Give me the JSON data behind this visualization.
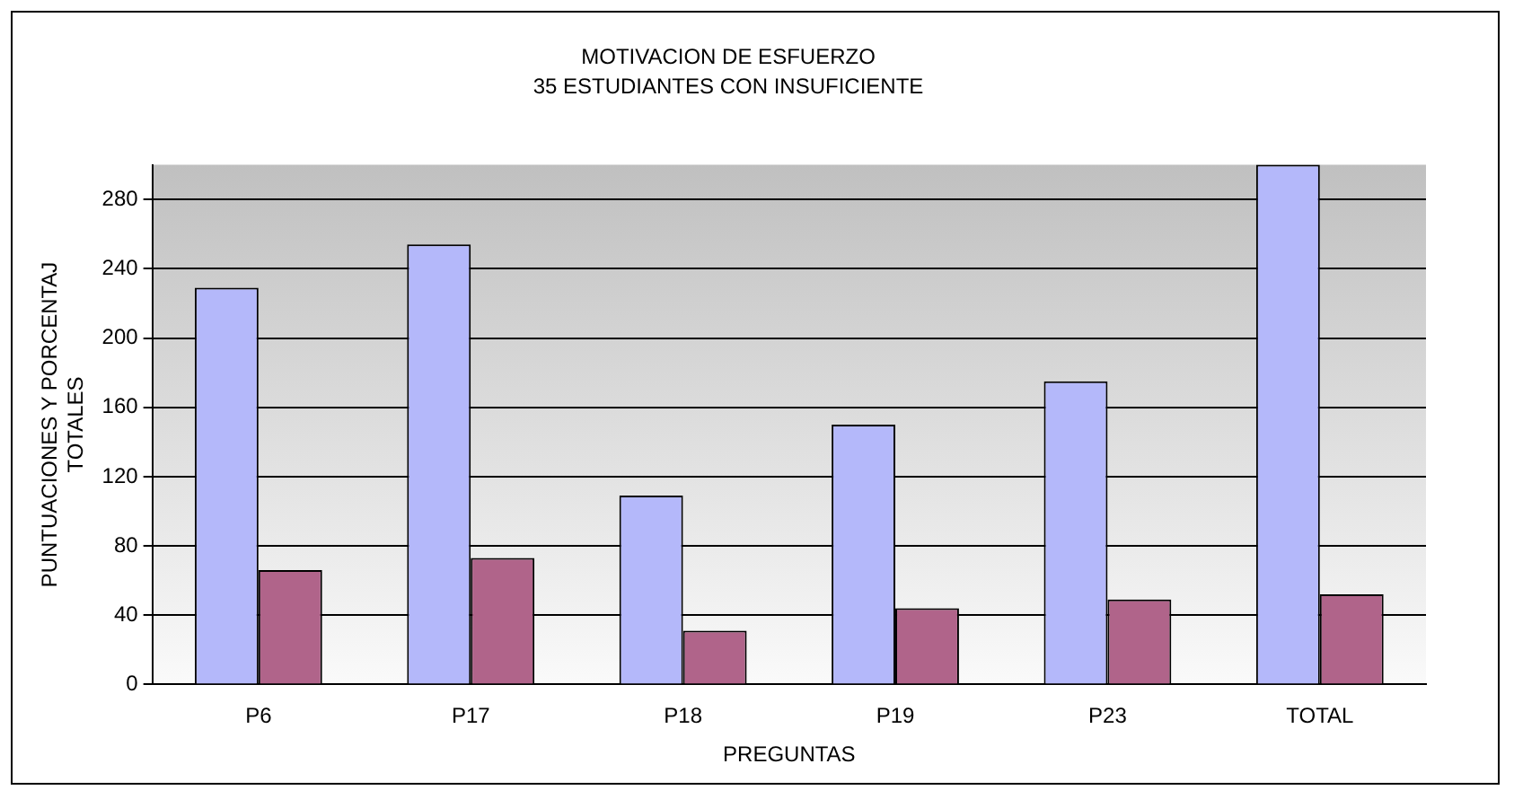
{
  "chart_data": {
    "type": "bar",
    "title": "MOTIVACION DE ESFUERZO",
    "subtitle": "35 ESTUDIANTES CON INSUFICIENTE",
    "xlabel": "PREGUNTAS",
    "ylabel": "PUNTUACIONES Y PORCENTAJ TOTALES",
    "categories": [
      "P6",
      "P17",
      "P18",
      "P19",
      "P23",
      "TOTAL"
    ],
    "series": [
      {
        "color": "#b4b8fa",
        "values": [
          229,
          254,
          109,
          150,
          175,
          300
        ]
      },
      {
        "color": "#b0648a",
        "values": [
          66,
          73,
          31,
          44,
          49,
          52
        ]
      }
    ],
    "ylim": [
      0,
      300
    ],
    "yticks": [
      0,
      40,
      80,
      120,
      160,
      200,
      240,
      280
    ],
    "grid": "y",
    "legend": false
  }
}
